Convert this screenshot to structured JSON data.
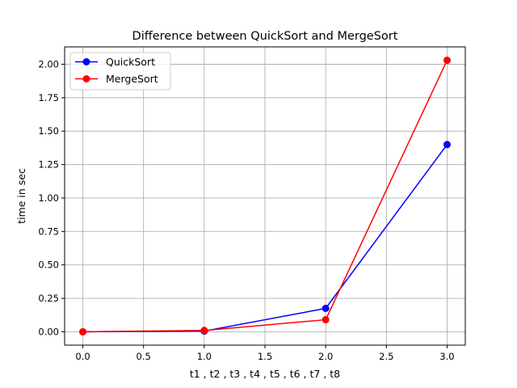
{
  "chart_data": {
    "type": "line",
    "title": "Difference between QuickSort and MergeSort",
    "xlabel": "t1 , t2 , t3 , t4 , t5 , t6 , t7 , t8",
    "ylabel": "time in sec",
    "xlim": [
      -0.15,
      3.15
    ],
    "ylim": [
      -0.1,
      2.13
    ],
    "xticks": [
      0.0,
      0.5,
      1.0,
      1.5,
      2.0,
      2.5,
      3.0
    ],
    "xtick_labels": [
      "0.0",
      "0.5",
      "1.0",
      "1.5",
      "2.0",
      "2.5",
      "3.0"
    ],
    "yticks": [
      0.0,
      0.25,
      0.5,
      0.75,
      1.0,
      1.25,
      1.5,
      1.75,
      2.0
    ],
    "ytick_labels": [
      "0.00",
      "0.25",
      "0.50",
      "0.75",
      "1.00",
      "1.25",
      "1.50",
      "1.75",
      "2.00"
    ],
    "grid": true,
    "legend_position": "top-left",
    "x": [
      0,
      1,
      2,
      3
    ],
    "series": [
      {
        "name": "QuickSort",
        "color": "#0000ff",
        "values": [
          0.0,
          0.005,
          0.175,
          1.4
        ]
      },
      {
        "name": "MergeSort",
        "color": "#ff0000",
        "values": [
          0.0,
          0.01,
          0.09,
          2.03
        ]
      }
    ]
  }
}
